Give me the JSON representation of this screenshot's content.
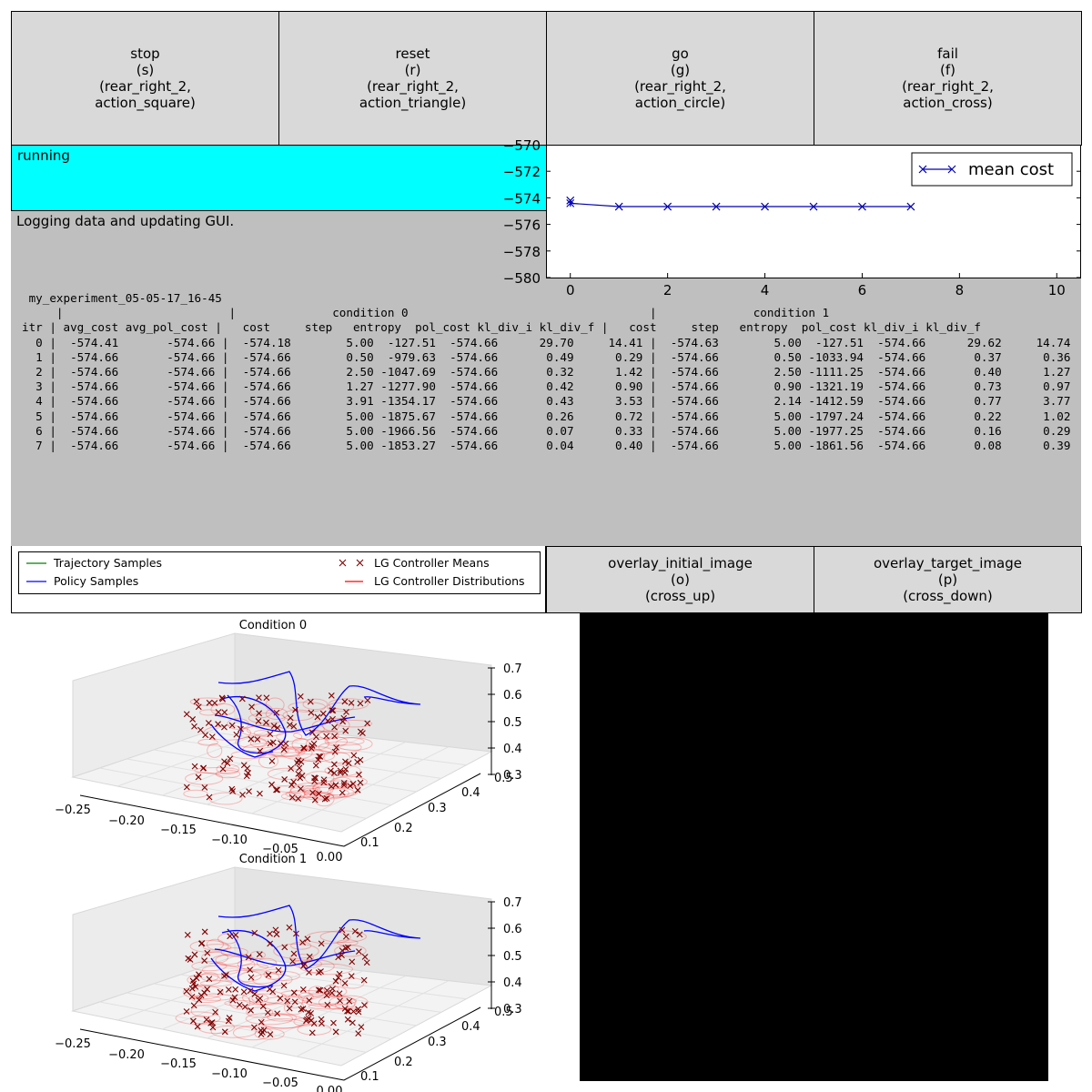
{
  "action_buttons": [
    {
      "label": "stop",
      "key": "(s)",
      "controller": "(rear_right_2,",
      "action": "action_square)"
    },
    {
      "label": "reset",
      "key": "(r)",
      "controller": "(rear_right_2,",
      "action": "action_triangle)"
    },
    {
      "label": "go",
      "key": "(g)",
      "controller": "(rear_right_2,",
      "action": "action_circle)"
    },
    {
      "label": "fail",
      "key": "(f)",
      "controller": "(rear_right_2,",
      "action": "action_cross)"
    }
  ],
  "status": {
    "text": "running",
    "color": "#00ffff"
  },
  "output": {
    "message": "Logging data and updating GUI.",
    "background": "#bfbfbf"
  },
  "log": {
    "experiment": "my_experiment_05-05-17_16-45",
    "header_conditions": [
      "condition 0",
      "condition 1"
    ],
    "columns": [
      "itr",
      "avg_cost",
      "avg_pol_cost",
      "cost",
      "step",
      "entropy",
      "pol_cost",
      "kl_div_i",
      "kl_div_f",
      "cost",
      "step",
      "entropy",
      "pol_cost",
      "kl_div_i",
      "kl_div_f"
    ],
    "rows": [
      [
        "0",
        "-574.41",
        "-574.66",
        "-574.18",
        "5.00",
        "-127.51",
        "-574.66",
        "29.70",
        "14.41",
        "-574.63",
        "5.00",
        "-127.51",
        "-574.66",
        "29.62",
        "14.74"
      ],
      [
        "1",
        "-574.66",
        "-574.66",
        "-574.66",
        "0.50",
        "-979.63",
        "-574.66",
        "0.49",
        "0.29",
        "-574.66",
        "0.50",
        "-1033.94",
        "-574.66",
        "0.37",
        "0.36"
      ],
      [
        "2",
        "-574.66",
        "-574.66",
        "-574.66",
        "2.50",
        "-1047.69",
        "-574.66",
        "0.32",
        "1.42",
        "-574.66",
        "2.50",
        "-1111.25",
        "-574.66",
        "0.40",
        "1.27"
      ],
      [
        "3",
        "-574.66",
        "-574.66",
        "-574.66",
        "1.27",
        "-1277.90",
        "-574.66",
        "0.42",
        "0.90",
        "-574.66",
        "0.90",
        "-1321.19",
        "-574.66",
        "0.73",
        "0.97"
      ],
      [
        "4",
        "-574.66",
        "-574.66",
        "-574.66",
        "3.91",
        "-1354.17",
        "-574.66",
        "0.43",
        "3.53",
        "-574.66",
        "2.14",
        "-1412.59",
        "-574.66",
        "0.77",
        "3.77"
      ],
      [
        "5",
        "-574.66",
        "-574.66",
        "-574.66",
        "5.00",
        "-1875.67",
        "-574.66",
        "0.26",
        "0.72",
        "-574.66",
        "5.00",
        "-1797.24",
        "-574.66",
        "0.22",
        "1.02"
      ],
      [
        "6",
        "-574.66",
        "-574.66",
        "-574.66",
        "5.00",
        "-1966.56",
        "-574.66",
        "0.07",
        "0.33",
        "-574.66",
        "5.00",
        "-1977.25",
        "-574.66",
        "0.16",
        "0.29"
      ],
      [
        "7",
        "-574.66",
        "-574.66",
        "-574.66",
        "5.00",
        "-1853.27",
        "-574.66",
        "0.04",
        "0.40",
        "-574.66",
        "5.00",
        "-1861.56",
        "-574.66",
        "0.08",
        "0.39"
      ]
    ]
  },
  "chart_data": {
    "type": "line",
    "legend": "mean cost",
    "legend_position": "top-right",
    "x": [
      0,
      1,
      2,
      3,
      4,
      5,
      6,
      7
    ],
    "y": [
      -574.41,
      -574.66,
      -574.66,
      -574.66,
      -574.66,
      -574.66,
      -574.66,
      -574.66
    ],
    "extra_point": {
      "x": 0,
      "y": -574.2
    },
    "xlim": [
      -0.5,
      10.5
    ],
    "ylim": [
      -580,
      -570
    ],
    "xticks": [
      "0",
      "2",
      "4",
      "6",
      "8",
      "10"
    ],
    "yticks": [
      "-570",
      "-572",
      "-574",
      "-576",
      "-578",
      "-580"
    ],
    "series_color": "#0000b0"
  },
  "legend": {
    "items": [
      "Trajectory Samples",
      "Policy Samples",
      "LG Controller Means",
      "LG Controller Distributions"
    ],
    "colors": {
      "trajectory": "#008000",
      "policy": "#0000ff",
      "means": "#800000",
      "distributions": "#ff0000"
    }
  },
  "overlay_buttons": [
    {
      "label": "overlay_initial_image",
      "key": "(o)",
      "action": "(cross_up)"
    },
    {
      "label": "overlay_target_image",
      "key": "(p)",
      "action": "(cross_down)"
    }
  ],
  "plots3d": [
    {
      "title": "Condition 0",
      "x_ticks": [
        "-0.25",
        "-0.20",
        "-0.15",
        "-0.10",
        "-0.05",
        "0.00"
      ],
      "y_ticks": [
        "0.1",
        "0.2",
        "0.3",
        "0.4",
        "0.5"
      ],
      "z_ticks": [
        "0.3",
        "0.4",
        "0.5",
        "0.6",
        "0.7"
      ]
    },
    {
      "title": "Condition 1",
      "x_ticks": [
        "-0.25",
        "-0.20",
        "-0.15",
        "-0.10",
        "-0.05",
        "0.00"
      ],
      "y_ticks": [
        "0.1",
        "0.2",
        "0.3",
        "0.4",
        "0.5"
      ],
      "z_ticks": [
        "0.3",
        "0.4",
        "0.5",
        "0.6",
        "0.7"
      ]
    }
  ]
}
